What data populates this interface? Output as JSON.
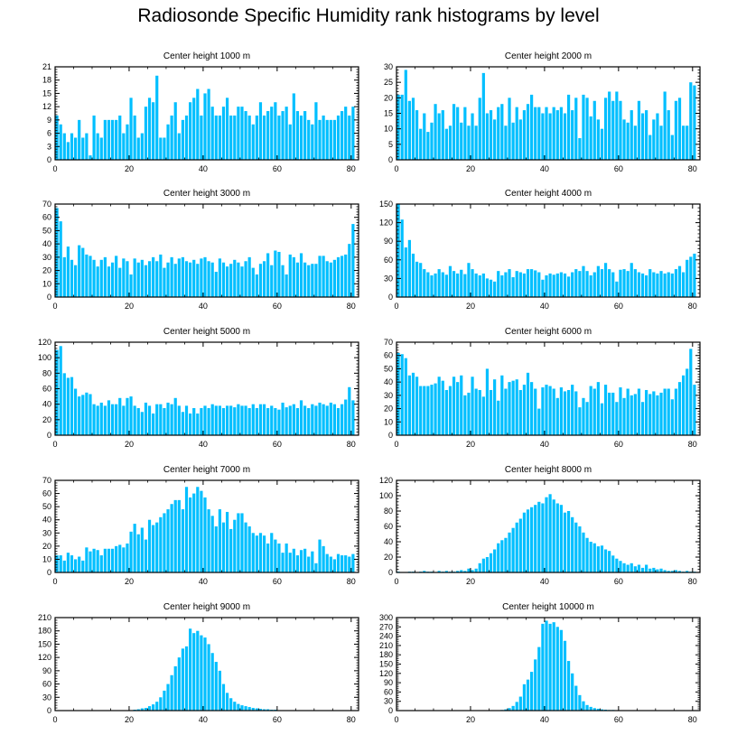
{
  "title": "Radiosonde Specific Humidity rank histograms by level",
  "bar_color": "#00bfff",
  "bar_edge_color": "#ffffff",
  "axis_color": "#000000",
  "chart_data": [
    {
      "type": "bar",
      "title": "Center height 1000 m",
      "xlim": [
        0,
        82
      ],
      "ylim": [
        0,
        21
      ],
      "xticks": [
        0,
        20,
        40,
        60,
        80
      ],
      "yticks": [
        0,
        3,
        6,
        9,
        12,
        15,
        18,
        21
      ],
      "values": [
        10,
        8,
        6,
        4,
        6,
        5,
        9,
        5,
        6,
        1,
        10,
        6,
        5,
        9,
        9,
        9,
        9,
        10,
        6,
        8,
        14,
        10,
        5,
        6,
        12,
        14,
        13,
        19,
        5,
        5,
        8,
        10,
        13,
        6,
        9,
        10,
        13,
        14,
        16,
        10,
        15,
        16,
        12,
        10,
        10,
        12,
        14,
        10,
        10,
        12,
        12,
        11,
        10,
        8,
        10,
        13,
        10,
        11,
        12,
        13,
        10,
        11,
        12,
        8,
        15,
        11,
        10,
        11,
        9,
        8,
        13,
        9,
        10,
        9,
        9,
        9,
        10,
        11,
        12,
        10,
        12
      ]
    },
    {
      "type": "bar",
      "title": "Center height 2000 m",
      "xlim": [
        0,
        82
      ],
      "ylim": [
        0,
        30
      ],
      "xticks": [
        0,
        20,
        40,
        60,
        80
      ],
      "yticks": [
        0,
        5,
        10,
        15,
        20,
        25,
        30
      ],
      "values": [
        21,
        21,
        29,
        19,
        20,
        16,
        10,
        15,
        9,
        12,
        18,
        15,
        16,
        10,
        11,
        18,
        17,
        12,
        17,
        11,
        15,
        11,
        20,
        28,
        15,
        16,
        13,
        17,
        18,
        11,
        20,
        12,
        17,
        13,
        16,
        18,
        21,
        17,
        17,
        15,
        17,
        15,
        17,
        16,
        17,
        15,
        21,
        16,
        20,
        7,
        21,
        20,
        14,
        19,
        13,
        10,
        20,
        22,
        19,
        22,
        19,
        13,
        12,
        16,
        11,
        19,
        15,
        16,
        8,
        13,
        15,
        11,
        22,
        16,
        8,
        19,
        20,
        11,
        11,
        25,
        24
      ]
    },
    {
      "type": "bar",
      "title": "Center height 3000 m",
      "xlim": [
        0,
        82
      ],
      "ylim": [
        0,
        70
      ],
      "xticks": [
        0,
        20,
        40,
        60,
        80
      ],
      "yticks": [
        0,
        10,
        20,
        30,
        40,
        50,
        60,
        70
      ],
      "values": [
        67,
        57,
        30,
        38,
        28,
        24,
        39,
        37,
        32,
        31,
        28,
        23,
        28,
        30,
        23,
        26,
        31,
        22,
        29,
        27,
        17,
        29,
        26,
        28,
        24,
        27,
        30,
        27,
        32,
        22,
        26,
        30,
        25,
        29,
        30,
        27,
        26,
        28,
        25,
        29,
        30,
        27,
        26,
        19,
        29,
        26,
        23,
        25,
        28,
        26,
        23,
        27,
        30,
        22,
        17,
        25,
        27,
        33,
        24,
        35,
        34,
        24,
        17,
        32,
        30,
        26,
        33,
        26,
        24,
        25,
        25,
        31,
        31,
        27,
        26,
        28,
        30,
        31,
        32,
        40,
        55
      ]
    },
    {
      "type": "bar",
      "title": "Center height 4000 m",
      "xlim": [
        0,
        82
      ],
      "ylim": [
        0,
        150
      ],
      "xticks": [
        0,
        20,
        40,
        60,
        80
      ],
      "yticks": [
        0,
        30,
        60,
        90,
        120,
        150
      ],
      "values": [
        150,
        125,
        80,
        92,
        70,
        57,
        55,
        45,
        40,
        35,
        38,
        45,
        40,
        36,
        50,
        42,
        38,
        44,
        37,
        55,
        45,
        38,
        35,
        38,
        30,
        28,
        25,
        42,
        35,
        40,
        45,
        32,
        42,
        40,
        38,
        45,
        45,
        43,
        40,
        28,
        35,
        38,
        36,
        38,
        40,
        38,
        33,
        40,
        45,
        42,
        50,
        42,
        35,
        40,
        50,
        45,
        55,
        45,
        40,
        25,
        44,
        45,
        42,
        55,
        45,
        40,
        38,
        35,
        45,
        40,
        38,
        42,
        38,
        40,
        38,
        45,
        50,
        40,
        60,
        65,
        70
      ]
    },
    {
      "type": "bar",
      "title": "Center height 5000 m",
      "xlim": [
        0,
        82
      ],
      "ylim": [
        0,
        120
      ],
      "xticks": [
        0,
        20,
        40,
        60,
        80
      ],
      "yticks": [
        0,
        20,
        40,
        60,
        80,
        100,
        120
      ],
      "values": [
        110,
        115,
        80,
        74,
        75,
        60,
        50,
        52,
        55,
        53,
        40,
        38,
        42,
        38,
        45,
        40,
        40,
        48,
        38,
        48,
        50,
        38,
        35,
        30,
        42,
        38,
        28,
        40,
        40,
        35,
        42,
        40,
        48,
        38,
        30,
        38,
        28,
        35,
        28,
        35,
        38,
        35,
        40,
        38,
        38,
        35,
        38,
        38,
        36,
        40,
        38,
        38,
        35,
        40,
        35,
        40,
        40,
        35,
        38,
        35,
        33,
        42,
        36,
        38,
        40,
        35,
        45,
        38,
        35,
        40,
        38,
        42,
        40,
        38,
        42,
        40,
        35,
        40,
        46,
        62,
        45
      ]
    },
    {
      "type": "bar",
      "title": "Center height 6000 m",
      "xlim": [
        0,
        82
      ],
      "ylim": [
        0,
        70
      ],
      "xticks": [
        0,
        20,
        40,
        60,
        80
      ],
      "yticks": [
        0,
        10,
        20,
        30,
        40,
        50,
        60,
        70
      ],
      "values": [
        62,
        61,
        58,
        45,
        47,
        44,
        37,
        37,
        37,
        38,
        39,
        44,
        41,
        34,
        37,
        44,
        40,
        45,
        30,
        32,
        44,
        35,
        34,
        29,
        50,
        34,
        42,
        26,
        45,
        35,
        40,
        41,
        42,
        34,
        38,
        47,
        40,
        35,
        20,
        36,
        38,
        37,
        35,
        28,
        36,
        33,
        34,
        38,
        33,
        21,
        28,
        25,
        37,
        35,
        40,
        24,
        38,
        32,
        32,
        25,
        36,
        28,
        35,
        30,
        31,
        35,
        25,
        34,
        31,
        33,
        30,
        32,
        35,
        35,
        27,
        35,
        40,
        45,
        50,
        65,
        38
      ]
    },
    {
      "type": "bar",
      "title": "Center height 7000 m",
      "xlim": [
        0,
        82
      ],
      "ylim": [
        0,
        70
      ],
      "xticks": [
        0,
        20,
        40,
        60,
        80
      ],
      "yticks": [
        0,
        10,
        20,
        30,
        40,
        50,
        60,
        70
      ],
      "values": [
        13,
        13,
        9,
        15,
        13,
        10,
        12,
        9,
        19,
        16,
        18,
        17,
        13,
        18,
        18,
        18,
        20,
        21,
        19,
        22,
        31,
        37,
        29,
        34,
        25,
        40,
        36,
        38,
        42,
        45,
        48,
        52,
        55,
        55,
        48,
        65,
        57,
        60,
        65,
        62,
        57,
        48,
        43,
        35,
        48,
        38,
        46,
        33,
        40,
        45,
        45,
        38,
        35,
        30,
        28,
        30,
        28,
        22,
        30,
        25,
        22,
        15,
        22,
        15,
        18,
        13,
        17,
        18,
        12,
        16,
        7,
        25,
        20,
        14,
        12,
        10,
        14,
        13,
        13,
        12,
        14
      ]
    },
    {
      "type": "bar",
      "title": "Center height 8000 m",
      "xlim": [
        0,
        82
      ],
      "ylim": [
        0,
        120
      ],
      "xticks": [
        0,
        20,
        40,
        60,
        80
      ],
      "yticks": [
        0,
        20,
        40,
        60,
        80,
        100,
        120
      ],
      "values": [
        1,
        0,
        0,
        1,
        1,
        0,
        1,
        2,
        1,
        1,
        0,
        2,
        1,
        2,
        1,
        1,
        2,
        3,
        2,
        5,
        3,
        5,
        12,
        18,
        20,
        25,
        30,
        38,
        42,
        45,
        52,
        58,
        65,
        70,
        78,
        82,
        85,
        88,
        92,
        90,
        98,
        102,
        95,
        90,
        88,
        78,
        80,
        72,
        65,
        60,
        52,
        45,
        40,
        38,
        34,
        35,
        30,
        28,
        22,
        18,
        15,
        12,
        10,
        12,
        8,
        10,
        6,
        10,
        5,
        6,
        4,
        5,
        3,
        2,
        2,
        3,
        2,
        1,
        2,
        1,
        1
      ]
    },
    {
      "type": "bar",
      "title": "Center height 9000 m",
      "xlim": [
        0,
        82
      ],
      "ylim": [
        0,
        210
      ],
      "xticks": [
        0,
        20,
        40,
        60,
        80
      ],
      "yticks": [
        0,
        30,
        60,
        90,
        120,
        150,
        180,
        210
      ],
      "values": [
        0,
        0,
        0,
        0,
        0,
        0,
        0,
        0,
        0,
        0,
        0,
        0,
        0,
        0,
        0,
        0,
        0,
        0,
        0,
        0,
        1,
        2,
        3,
        5,
        6,
        10,
        14,
        20,
        30,
        45,
        60,
        80,
        100,
        120,
        140,
        145,
        185,
        175,
        180,
        170,
        165,
        150,
        130,
        110,
        90,
        60,
        40,
        28,
        20,
        15,
        12,
        10,
        8,
        6,
        5,
        4,
        3,
        3,
        2,
        2,
        1,
        1,
        1,
        1,
        0,
        0,
        0,
        0,
        0,
        0,
        0,
        0,
        0,
        0,
        0,
        0,
        0,
        0,
        0,
        0,
        0
      ]
    },
    {
      "type": "bar",
      "title": "Center height 10000 m",
      "xlim": [
        0,
        82
      ],
      "ylim": [
        0,
        300
      ],
      "xticks": [
        0,
        20,
        40,
        60,
        80
      ],
      "yticks": [
        0,
        30,
        60,
        90,
        120,
        150,
        180,
        210,
        240,
        270,
        300
      ],
      "values": [
        0,
        0,
        0,
        0,
        0,
        0,
        0,
        0,
        0,
        0,
        0,
        0,
        0,
        0,
        0,
        0,
        0,
        0,
        0,
        0,
        0,
        0,
        0,
        0,
        0,
        0,
        0,
        1,
        2,
        4,
        8,
        15,
        28,
        45,
        85,
        100,
        125,
        165,
        205,
        280,
        290,
        280,
        285,
        270,
        260,
        225,
        160,
        120,
        80,
        50,
        30,
        18,
        12,
        8,
        6,
        4,
        3,
        2,
        2,
        1,
        1,
        0,
        0,
        0,
        0,
        0,
        0,
        0,
        0,
        0,
        0,
        0,
        0,
        0,
        0,
        0,
        0,
        0,
        0,
        0,
        0
      ]
    }
  ]
}
